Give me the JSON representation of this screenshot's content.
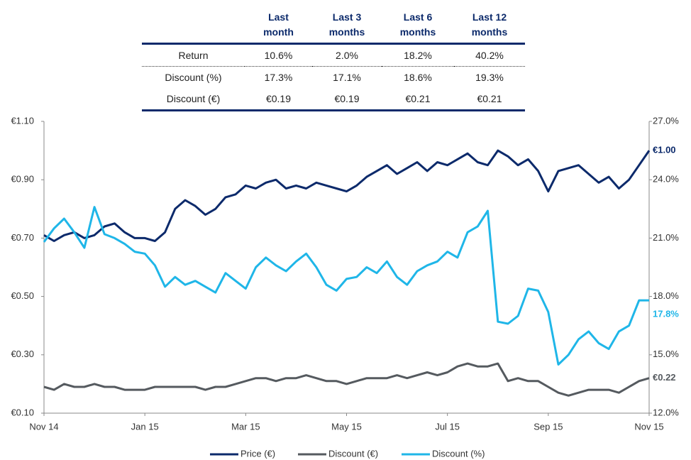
{
  "table": {
    "header": [
      "Last month",
      "Last 3 months",
      "Last 6 months",
      "Last 12 months"
    ],
    "rows": [
      [
        "Return",
        "10.6%",
        "2.0%",
        "18.2%",
        "40.2%"
      ],
      [
        "Discount (%)",
        "17.3%",
        "17.1%",
        "18.6%",
        "19.3%"
      ],
      [
        "Discount (€)",
        "€0.19",
        "€0.19",
        "€0.21",
        "€0.21"
      ]
    ]
  },
  "chart_data": {
    "type": "line",
    "categories": [
      "Nov 14",
      null,
      null,
      null,
      null,
      null,
      null,
      null,
      null,
      null,
      "Jan 15",
      null,
      null,
      null,
      null,
      null,
      null,
      null,
      null,
      null,
      "Mar 15",
      null,
      null,
      null,
      null,
      null,
      null,
      null,
      null,
      null,
      "May 15",
      null,
      null,
      null,
      null,
      null,
      null,
      null,
      null,
      null,
      "Jul 15",
      null,
      null,
      null,
      null,
      null,
      null,
      null,
      null,
      null,
      "Sep 15",
      null,
      null,
      null,
      null,
      null,
      null,
      null,
      null,
      null,
      "Nov 15"
    ],
    "ylim": [
      0.1,
      1.1
    ],
    "yticks": [
      {
        "value": 0.1,
        "label": "€0.10"
      },
      {
        "value": 0.3,
        "label": "€0.30"
      },
      {
        "value": 0.5,
        "label": "€0.50"
      },
      {
        "value": 0.7,
        "label": "€0.70"
      },
      {
        "value": 0.9,
        "label": "€0.90"
      },
      {
        "value": 1.1,
        "label": "€1.10"
      }
    ],
    "y2lim": [
      12,
      27
    ],
    "y2ticks": [
      {
        "value": 12,
        "label": "12.0%"
      },
      {
        "value": 15,
        "label": "15.0%"
      },
      {
        "value": 18,
        "label": "18.0%"
      },
      {
        "value": 21,
        "label": "21.0%"
      },
      {
        "value": 24,
        "label": "24.0%"
      },
      {
        "value": 27,
        "label": "27.0%"
      }
    ],
    "legend": "bottom",
    "series": [
      {
        "name": "Price (€)",
        "color": "#0c2a6b",
        "values": [
          0.71,
          0.69,
          0.71,
          0.72,
          0.7,
          0.71,
          0.74,
          0.75,
          0.72,
          0.7,
          0.7,
          0.69,
          0.72,
          0.8,
          0.83,
          0.81,
          0.78,
          0.8,
          0.84,
          0.85,
          0.88,
          0.87,
          0.89,
          0.9,
          0.87,
          0.88,
          0.87,
          0.89,
          0.88,
          0.87,
          0.86,
          0.88,
          0.91,
          0.93,
          0.95,
          0.92,
          0.94,
          0.96,
          0.93,
          0.96,
          0.95,
          0.97,
          0.99,
          0.96,
          0.95,
          1.0,
          0.98,
          0.95,
          0.97,
          0.93,
          0.86,
          0.93,
          0.94,
          0.95,
          0.92,
          0.89,
          0.91,
          0.87,
          0.9,
          0.95,
          1.0
        ],
        "value_labels": [
          null,
          null,
          null,
          null,
          null,
          null,
          null,
          null,
          null,
          null,
          null,
          null,
          null,
          null,
          null,
          null,
          null,
          null,
          null,
          null,
          null,
          null,
          null,
          null,
          null,
          null,
          null,
          null,
          null,
          null,
          null,
          null,
          null,
          null,
          null,
          null,
          null,
          null,
          null,
          null,
          null,
          null,
          null,
          null,
          null,
          null,
          null,
          null,
          null,
          null,
          null,
          null,
          null,
          null,
          null,
          null,
          null,
          null,
          null,
          null,
          "€1.00"
        ]
      },
      {
        "name": "Discount (€)",
        "color": "#555a5f",
        "values": [
          0.19,
          0.18,
          0.2,
          0.19,
          0.19,
          0.2,
          0.19,
          0.19,
          0.18,
          0.18,
          0.18,
          0.19,
          0.19,
          0.19,
          0.19,
          0.19,
          0.18,
          0.19,
          0.19,
          0.2,
          0.21,
          0.22,
          0.22,
          0.21,
          0.22,
          0.22,
          0.23,
          0.22,
          0.21,
          0.21,
          0.2,
          0.21,
          0.22,
          0.22,
          0.22,
          0.23,
          0.22,
          0.23,
          0.24,
          0.23,
          0.24,
          0.26,
          0.27,
          0.26,
          0.26,
          0.27,
          0.21,
          0.22,
          0.21,
          0.21,
          0.19,
          0.17,
          0.16,
          0.17,
          0.18,
          0.18,
          0.18,
          0.17,
          0.19,
          0.21,
          0.22
        ],
        "value_labels": [
          null,
          null,
          null,
          null,
          null,
          null,
          null,
          null,
          null,
          null,
          null,
          null,
          null,
          null,
          null,
          null,
          null,
          null,
          null,
          null,
          null,
          null,
          null,
          null,
          null,
          null,
          null,
          null,
          null,
          null,
          null,
          null,
          null,
          null,
          null,
          null,
          null,
          null,
          null,
          null,
          null,
          null,
          null,
          null,
          null,
          null,
          null,
          null,
          null,
          null,
          null,
          null,
          null,
          null,
          null,
          null,
          null,
          null,
          null,
          null,
          "€0.22"
        ]
      },
      {
        "name": "Discount (%)",
        "color": "#1fb6e8",
        "axis": "y2",
        "values": [
          20.8,
          21.5,
          22.0,
          21.3,
          20.5,
          22.6,
          21.2,
          21.0,
          20.7,
          20.3,
          20.2,
          19.6,
          18.5,
          19.0,
          18.6,
          18.8,
          18.5,
          18.2,
          19.2,
          18.8,
          18.4,
          19.5,
          20.0,
          19.6,
          19.3,
          19.8,
          20.2,
          19.5,
          18.6,
          18.3,
          18.9,
          19.0,
          19.5,
          19.2,
          19.8,
          19.0,
          18.6,
          19.3,
          19.6,
          19.8,
          20.3,
          20.0,
          21.3,
          21.6,
          22.4,
          16.7,
          16.6,
          17.0,
          18.4,
          18.3,
          17.2,
          14.5,
          15.0,
          15.8,
          16.2,
          15.6,
          15.3,
          16.2,
          16.5,
          17.8,
          17.8
        ],
        "value_labels": [
          null,
          null,
          null,
          null,
          null,
          null,
          null,
          null,
          null,
          null,
          null,
          null,
          null,
          null,
          null,
          null,
          null,
          null,
          null,
          null,
          null,
          null,
          null,
          null,
          null,
          null,
          null,
          null,
          null,
          null,
          null,
          null,
          null,
          null,
          null,
          null,
          null,
          null,
          null,
          null,
          null,
          null,
          null,
          null,
          null,
          null,
          null,
          null,
          null,
          null,
          null,
          null,
          null,
          null,
          null,
          null,
          null,
          null,
          null,
          null,
          "17.8%"
        ]
      }
    ]
  }
}
